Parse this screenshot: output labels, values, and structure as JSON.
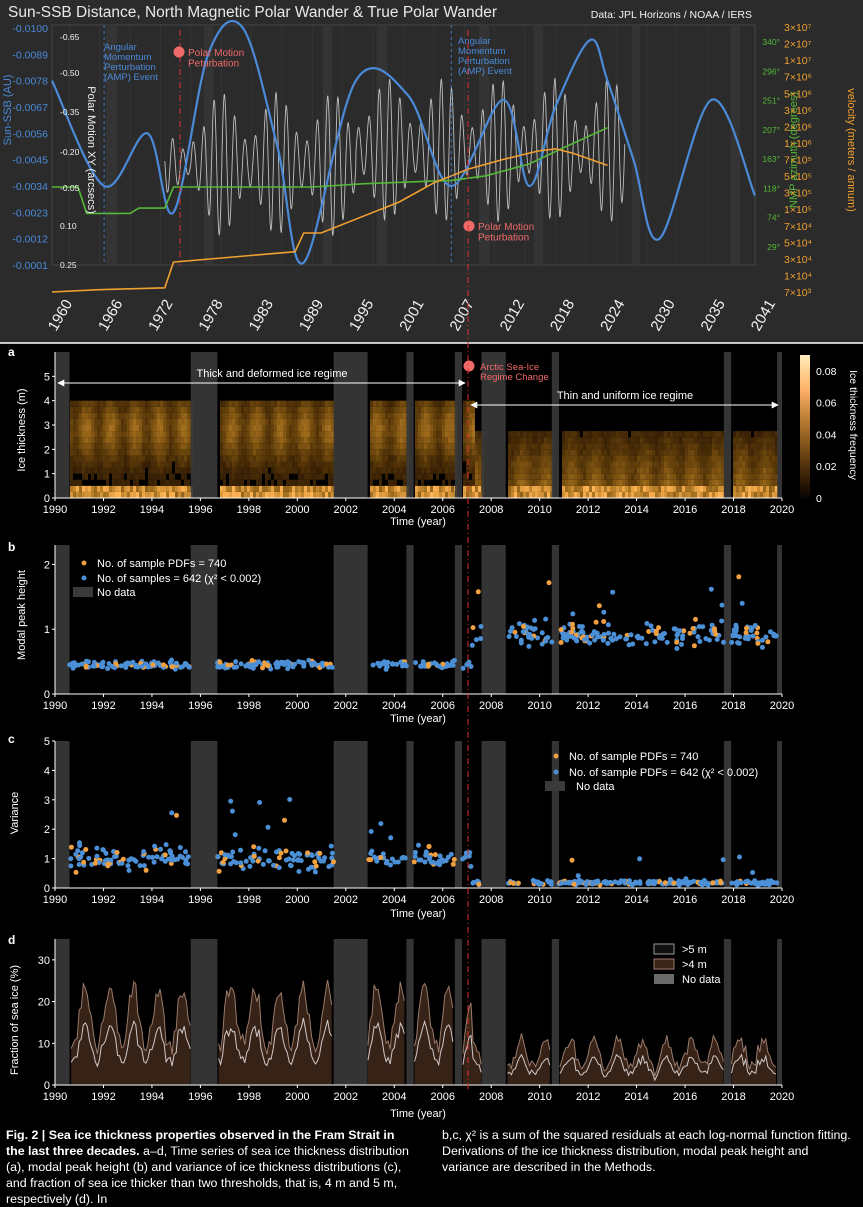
{
  "colors": {
    "accent_blue": "#4a8ad8",
    "accent_orange": "#f0a030",
    "accent_green": "#55b838",
    "accent_red": "#f06a6a",
    "point_blue": "#4b8fd6",
    "point_orange": "#f0a040",
    "panel_bg_top": "#2b2b2b",
    "nodata_gray": "#3a3a3a"
  },
  "top_chart": {
    "title": "Sun-SSB Distance, North Magnetic Polar Wander & True Polar Wander",
    "source": "Data: JPL Horizons / NOAA / IERS",
    "left_axis_label": "Sun-SSB (AU)",
    "left_ticks": [
      "-0.0100",
      "-0.0089",
      "-0.0078",
      "-0.0067",
      "-0.0056",
      "-0.0045",
      "-0.0034",
      "-0.0023",
      "-0.0012",
      "-0.0001"
    ],
    "polar_axis_label": "Polar Motion XY (arcsecs)",
    "polar_ticks": [
      "-0.65",
      "-0.50",
      "-0.35",
      "-0.20",
      "-0.05",
      "0.10",
      "0.25"
    ],
    "nmp_axis_label": "NMP azimuth (degrees)",
    "nmp_ticks": [
      "340°",
      "296°",
      "251°",
      "207°",
      "163°",
      "118°",
      "74°",
      "29°"
    ],
    "vel_axis_label": "velocity (meters / annum)",
    "vel_ticks": [
      "3×10⁷",
      "2×10⁷",
      "1×10⁷",
      "7×10⁶",
      "5×10⁶",
      "3×10⁶",
      "2×10⁶",
      "1×10⁶",
      "7×10⁵",
      "5×10⁵",
      "3×10⁵",
      "1×10⁵",
      "7×10⁴",
      "5×10⁴",
      "3×10⁴",
      "1×10⁴",
      "7×10³"
    ],
    "x_ticks": [
      "1960",
      "1966",
      "1972",
      "1978",
      "1983",
      "1989",
      "1995",
      "2001",
      "2007",
      "2012",
      "2018",
      "2024",
      "2030",
      "2035",
      "2041"
    ],
    "annotations": {
      "amp_left": "Angular\nMomentum\nPerturbation\n(AMP) Event",
      "amp_right": "Angular\nMomentum\nPerturbation\n(AMP) Event",
      "pmp_top": "Polar Motion\nPeturbation",
      "pmp_bottom": "Polar Motion\nPeturbation"
    }
  },
  "panel_a": {
    "label": "a",
    "ylabel": "Ice thickness (m)",
    "xlabel": "Time (year)",
    "yticks": [
      "0",
      "1",
      "2",
      "3",
      "4",
      "5"
    ],
    "xticks": [
      "1990",
      "1992",
      "1994",
      "1996",
      "1998",
      "2000",
      "2002",
      "2004",
      "2006",
      "2008",
      "2010",
      "2012",
      "2014",
      "2016",
      "2018",
      "2020"
    ],
    "colorbar_label": "Ice thickness frequency",
    "colorbar_ticks": [
      "0",
      "0.02",
      "0.04",
      "0.06",
      "0.08"
    ],
    "regime_thick": "Thick and deformed ice regime",
    "regime_thin": "Thin and uniform ice regime",
    "regime_change": "Arctic Sea-Ice\nRegime Change"
  },
  "panel_b": {
    "label": "b",
    "ylabel": "Modal peak height",
    "xlabel": "Time (year)",
    "yticks": [
      "0",
      "1",
      "2"
    ],
    "xticks": [
      "1990",
      "1992",
      "1994",
      "1996",
      "1998",
      "2000",
      "2002",
      "2004",
      "2006",
      "2008",
      "2010",
      "2012",
      "2014",
      "2016",
      "2018",
      "2020"
    ],
    "legend": [
      "No. of sample PDFs = 740",
      "No. of samples = 642 (χ² < 0.002)",
      "No data"
    ]
  },
  "panel_c": {
    "label": "c",
    "ylabel": "Variance",
    "xlabel": "Time (year)",
    "yticks": [
      "0",
      "1",
      "2",
      "3",
      "4",
      "5"
    ],
    "xticks": [
      "1990",
      "1992",
      "1994",
      "1996",
      "1998",
      "2000",
      "2002",
      "2004",
      "2006",
      "2008",
      "2010",
      "2012",
      "2014",
      "2016",
      "2018",
      "2020"
    ],
    "legend": [
      "No. of sample PDFs = 740",
      "No. of sample PDFs = 642 (χ² < 0.002)",
      "No data"
    ]
  },
  "panel_d": {
    "label": "d",
    "ylabel": "Fraction of sea ice (%)",
    "xlabel": "Time (year)",
    "yticks": [
      "0",
      "10",
      "20",
      "30"
    ],
    "xticks": [
      "1990",
      "1992",
      "1994",
      "1996",
      "1998",
      "2000",
      "2002",
      "2004",
      "2006",
      "2008",
      "2010",
      "2012",
      "2014",
      "2016",
      "2018",
      "2020"
    ],
    "legend": [
      ">5 m",
      ">4 m",
      "No data"
    ]
  },
  "caption": {
    "bold": "Fig. 2 | Sea ice thickness properties observed in the Fram Strait in the last three decades.",
    "left_rest": " a–d, Time series of sea ice thickness distribution (a), modal peak height (b) and variance of ice thickness distributions (c), and fraction of sea ice thicker than two thresholds, that is, 4 m and 5 m, respectively (d). In",
    "right": "b,c, χ² is a sum of the squared residuals at each log-normal function fitting. Derivations of the ice thickness distribution, modal peak height and variance are described in the Methods."
  },
  "chart_data": [
    {
      "type": "line",
      "title": "Sun-SSB Distance, North Magnetic Polar Wander & True Polar Wander",
      "x_range": [
        1960,
        2041
      ],
      "series": [
        {
          "name": "Sun-SSB (AU)",
          "x": [
            1960,
            1966,
            1971,
            1974,
            1978,
            1982,
            1986,
            1989,
            1995,
            2001,
            2006,
            2012,
            2015,
            2018,
            2022,
            2024,
            2027,
            2030,
            2036,
            2041
          ],
          "values": [
            -0.0078,
            -0.0034,
            -0.0056,
            -0.0023,
            -0.0089,
            -0.01,
            -0.005,
            -0.0002,
            -0.0078,
            -0.0072,
            -0.0034,
            -0.007,
            -0.0034,
            -0.0067,
            -0.0095,
            -0.0078,
            -0.0045,
            -0.0012,
            -0.007,
            -0.003
          ]
        },
        {
          "name": "NMP azimuth (degrees)",
          "x": [
            1960,
            1963,
            1964,
            1969,
            1970,
            1973,
            1974,
            1990,
            1996,
            2002,
            2006,
            2010,
            2015,
            2019,
            2024
          ],
          "values": [
            120,
            120,
            80,
            80,
            88,
            88,
            120,
            120,
            125,
            128,
            130,
            137,
            155,
            180,
            210
          ]
        },
        {
          "name": "velocity (meters / annum)",
          "x": [
            1960,
            1965,
            1973,
            1974,
            1988,
            1989,
            1991,
            2000,
            2004,
            2008,
            2012,
            2016,
            2018,
            2020,
            2024
          ],
          "values": [
            7000,
            7500,
            8000,
            18000,
            25000,
            45000,
            45000,
            120000,
            220000,
            340000,
            460000,
            600000,
            640000,
            560000,
            380000
          ]
        },
        {
          "name": "Polar Motion XY (arcsecs)",
          "x_range": [
            1973,
            2026
          ],
          "period_years": 1.19,
          "envelope": "beat ~6.4 yr",
          "amplitude_range": [
            0.05,
            0.35
          ]
        }
      ],
      "events": [
        {
          "label": "Angular Momentum Perturbation (AMP) Event",
          "x": 1966
        },
        {
          "label": "Angular Momentum Perturbation (AMP) Event",
          "x": 2006
        },
        {
          "label": "Polar Motion Peturbation",
          "x": 1974.5
        },
        {
          "label": "Polar Motion Peturbation",
          "x": 2007
        }
      ]
    },
    {
      "type": "heatmap",
      "title": "a",
      "xlabel": "Time (year)",
      "ylabel": "Ice thickness (m)",
      "xlim": [
        1990,
        2020
      ],
      "ylim": [
        0,
        6
      ],
      "clim": [
        0,
        0.09
      ],
      "no_data": [
        [
          1990.0,
          1990.6
        ],
        [
          1995.6,
          1996.7
        ],
        [
          2001.5,
          2002.9
        ],
        [
          2004.5,
          2004.8
        ],
        [
          2006.5,
          2006.8
        ],
        [
          2007.6,
          2008.6
        ],
        [
          2010.5,
          2010.8
        ],
        [
          2017.6,
          2017.9
        ],
        [
          2019.8,
          2020.0
        ]
      ],
      "regime_change_year": 2007.0
    },
    {
      "type": "scatter",
      "title": "b",
      "xlabel": "Time (year)",
      "ylabel": "Modal peak height",
      "xlim": [
        1990,
        2020
      ],
      "ylim": [
        0,
        2.3
      ],
      "series": [
        {
          "name": "No. of samples = 642 (χ² < 0.002)",
          "mean_before_2007": 0.45,
          "mean_after_2007": 0.9
        },
        {
          "name": "No. of sample PDFs = 740",
          "mean_before_2007": 0.45,
          "mean_after_2007": 0.95
        }
      ]
    },
    {
      "type": "scatter",
      "title": "c",
      "xlabel": "Time (year)",
      "ylabel": "Variance",
      "xlim": [
        1990,
        2020
      ],
      "ylim": [
        0,
        5
      ],
      "series": [
        {
          "name": "No. of sample PDFs = 642 (χ² < 0.002)",
          "mean_before_2007": 1.1,
          "mean_after_2007": 0.25
        },
        {
          "name": "No. of sample PDFs = 740",
          "mean_before_2007": 0.9,
          "mean_after_2007": 0.2
        }
      ]
    },
    {
      "type": "area",
      "title": "d",
      "xlabel": "Time (year)",
      "ylabel": "Fraction of sea ice (%)",
      "xlim": [
        1990,
        2020
      ],
      "ylim": [
        0,
        35
      ],
      "series": [
        {
          "name": ">4 m",
          "mean_before_2007": 17,
          "mean_after_2007": 8
        },
        {
          "name": ">5 m",
          "mean_before_2007": 11,
          "mean_after_2007": 5
        }
      ]
    }
  ]
}
